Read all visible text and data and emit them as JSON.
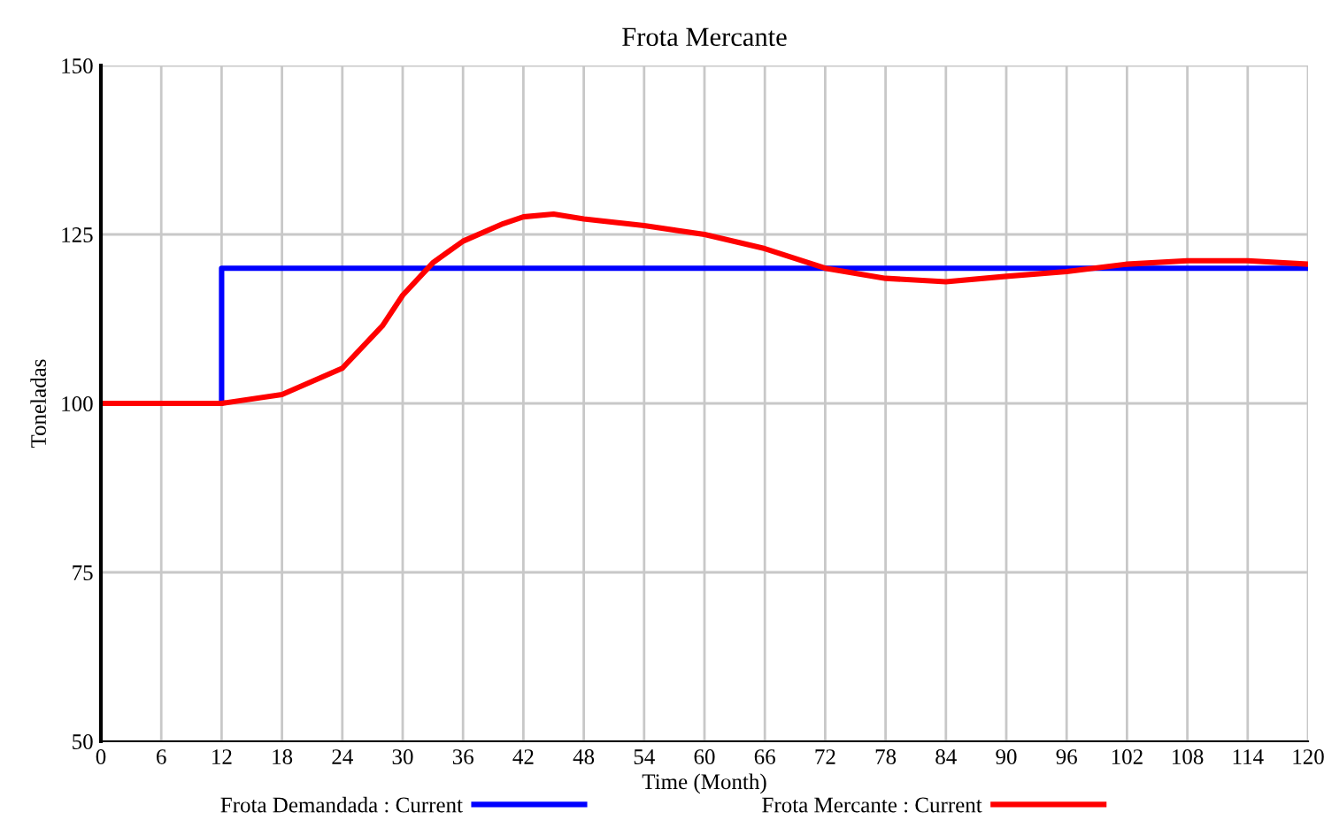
{
  "chart_data": {
    "type": "line",
    "title": "Frota Mercante",
    "xlabel": "Time (Month)",
    "ylabel": "Toneladas",
    "xlim": [
      0,
      120
    ],
    "ylim": [
      50,
      150
    ],
    "xticks": [
      0,
      6,
      12,
      18,
      24,
      30,
      36,
      42,
      48,
      54,
      60,
      66,
      72,
      78,
      84,
      90,
      96,
      102,
      108,
      114,
      120
    ],
    "yticks": [
      50,
      75,
      100,
      125,
      150
    ],
    "grid": true,
    "legend": "bottom",
    "series": [
      {
        "name": "Frota Demandada : Current",
        "color": "#0000ff",
        "x": [
          0,
          12,
          12,
          120
        ],
        "values": [
          100,
          100,
          120,
          120
        ]
      },
      {
        "name": "Frota Mercante : Current",
        "color": "#ff0000",
        "x": [
          0,
          12,
          18,
          24,
          28,
          30,
          33,
          36,
          40,
          42,
          45,
          48,
          54,
          60,
          66,
          72,
          78,
          84,
          90,
          96,
          102,
          108,
          114,
          120
        ],
        "values": [
          100,
          100,
          101.3,
          105.2,
          111.5,
          116,
          120.8,
          124,
          126.6,
          127.6,
          128,
          127.3,
          126.3,
          125,
          122.9,
          120,
          118.5,
          118,
          118.8,
          119.5,
          120.6,
          121.1,
          121.1,
          120.6
        ]
      }
    ]
  }
}
